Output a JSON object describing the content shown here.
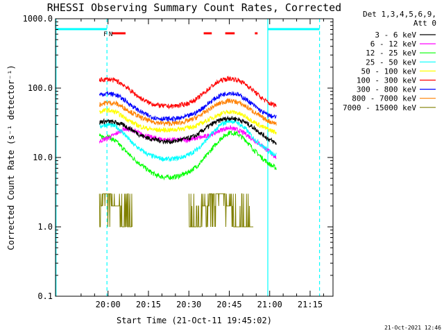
{
  "chart_data": {
    "type": "line",
    "title": "RHESSI Observing Summary Count Rates, Corrected",
    "xlabel": "Start Time (21-Oct-11 19:45:02)",
    "ylabel": "Corrected Count Rate (s⁻¹ detector⁻¹)",
    "y_scale": "log",
    "ylim": [
      0.1,
      1000
    ],
    "xlim_minutes": [
      -4.5,
      98.5
    ],
    "x_ticks": [
      {
        "label": "20:00",
        "minutes": 15
      },
      {
        "label": "20:15",
        "minutes": 30
      },
      {
        "label": "20:30",
        "minutes": 45
      },
      {
        "label": "20:45",
        "minutes": 60
      },
      {
        "label": "21:00",
        "minutes": 75
      },
      {
        "label": "21:15",
        "minutes": 90
      }
    ],
    "y_ticks": [
      {
        "label": "1000.0",
        "value": 1000
      },
      {
        "label": "100.0",
        "value": 100
      },
      {
        "label": "10.0",
        "value": 10
      },
      {
        "label": "1.0",
        "value": 1
      },
      {
        "label": "0.1",
        "value": 0.1
      }
    ],
    "legend_header": [
      "Det 1,3,4,5,6,9,",
      "Att 0"
    ],
    "legend_position": "right",
    "x": [
      11.8,
      13,
      15,
      18,
      21,
      24,
      27,
      30,
      33,
      36,
      39,
      42,
      45,
      48,
      51,
      54,
      57,
      60,
      63,
      66,
      69,
      72,
      75,
      77.5
    ],
    "series": [
      {
        "name": "3 - 6 keV",
        "color": "#000000",
        "values": [
          32,
          33,
          33,
          32,
          29,
          25,
          21,
          19,
          18,
          17,
          17,
          18,
          19,
          21,
          26,
          31,
          35,
          37,
          36,
          32,
          27,
          22,
          18,
          16
        ]
      },
      {
        "name": "6 - 12 keV",
        "color": "#ff00ff",
        "values": [
          17,
          18,
          19,
          22,
          26,
          25,
          22,
          20,
          19,
          18,
          18,
          18,
          18,
          19,
          20,
          22,
          25,
          27,
          25,
          22,
          18,
          15,
          12,
          10
        ]
      },
      {
        "name": "12 - 25 keV",
        "color": "#00ff00",
        "values": [
          20,
          20,
          20,
          17,
          13,
          10,
          8,
          6.5,
          5.5,
          5.2,
          5.2,
          5.5,
          6.2,
          7.5,
          10,
          14,
          19,
          23,
          22,
          18,
          13,
          10,
          8,
          7
        ]
      },
      {
        "name": "25 - 50 keV",
        "color": "#00ffff",
        "values": [
          28,
          29,
          30,
          28,
          22,
          16,
          13,
          11,
          10,
          9.5,
          9.5,
          10,
          11,
          13,
          17,
          23,
          30,
          34,
          32,
          26,
          19,
          15,
          12,
          11
        ]
      },
      {
        "name": "50 - 100 keV",
        "color": "#ffff00",
        "values": [
          45,
          47,
          48,
          45,
          38,
          32,
          28,
          26,
          25,
          25,
          25,
          26,
          27,
          29,
          33,
          38,
          43,
          46,
          44,
          39,
          33,
          28,
          25,
          23
        ]
      },
      {
        "name": "100 - 300 keV",
        "color": "#ff0000",
        "values": [
          130,
          132,
          135,
          128,
          110,
          88,
          72,
          62,
          57,
          55,
          55,
          57,
          61,
          70,
          88,
          110,
          130,
          138,
          132,
          115,
          92,
          72,
          60,
          57
        ]
      },
      {
        "name": "300 - 800 keV",
        "color": "#0000ff",
        "values": [
          80,
          82,
          84,
          80,
          68,
          55,
          46,
          40,
          37,
          36,
          36,
          37,
          40,
          45,
          55,
          68,
          80,
          86,
          82,
          70,
          57,
          46,
          40,
          38
        ]
      },
      {
        "name": "800 - 7000 keV",
        "color": "#ff8000",
        "values": [
          58,
          60,
          62,
          60,
          52,
          44,
          38,
          34,
          32,
          31,
          31,
          32,
          34,
          38,
          45,
          54,
          62,
          66,
          63,
          55,
          46,
          38,
          33,
          31
        ]
      },
      {
        "name": "7000 - 15000 keV",
        "color": "#808000",
        "values": [
          1,
          3,
          3,
          2,
          1,
          1,
          null,
          null,
          null,
          null,
          null,
          null,
          1,
          1,
          2,
          3,
          3,
          2,
          1,
          1,
          1,
          null,
          null,
          null
        ]
      }
    ],
    "vertical_lines": [
      {
        "minutes": -4.3,
        "style": "solid",
        "color": "#00ffff"
      },
      {
        "minutes": 14.6,
        "style": "dashed",
        "color": "#00ffff"
      },
      {
        "minutes": 74.3,
        "style": "solid",
        "color": "#00ffff"
      },
      {
        "minutes": 93.5,
        "style": "dashed",
        "color": "#00ffff"
      }
    ],
    "night_bars": [
      {
        "start": -4.3,
        "end": 14.6,
        "color": "#00ffff"
      },
      {
        "start": 74.3,
        "end": 93.5,
        "color": "#00ffff"
      }
    ],
    "flare_bars": [
      {
        "start": 16.5,
        "end": 21.5
      },
      {
        "start": 50.5,
        "end": 53.5
      },
      {
        "start": 58.5,
        "end": 62.0
      },
      {
        "start": 69.5,
        "end": 70.5
      }
    ],
    "flags": [
      {
        "label": "F",
        "minutes": 14.0,
        "color": "#ff0000"
      },
      {
        "label": "N",
        "minutes": 16.0,
        "color": "#00ffff"
      }
    ],
    "timestamp": "21-Oct-2021 12:46"
  }
}
